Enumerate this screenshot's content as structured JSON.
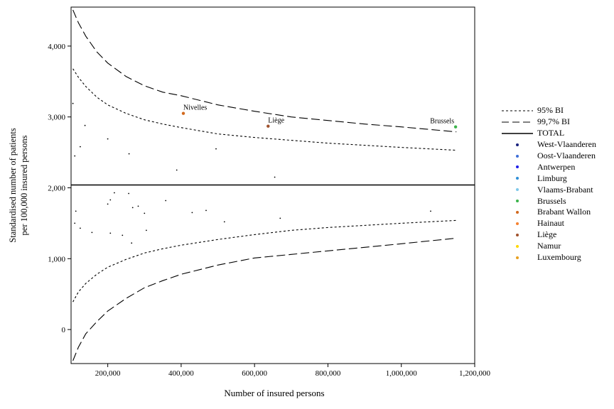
{
  "chart_data": {
    "type": "scatter",
    "title": "",
    "xlabel": "Number of insured persons",
    "ylabel": [
      "Standardised number of patients",
      "per 100,000 insured persons"
    ],
    "xlim": [
      100000,
      1200000
    ],
    "ylim": [
      -480,
      4550
    ],
    "x_ticks": [
      200000,
      400000,
      600000,
      800000,
      1000000,
      1200000
    ],
    "x_tick_labels": [
      "200,000",
      "400,000",
      "600,000",
      "800,000",
      "1,000,000",
      "1,200,000"
    ],
    "y_ticks": [
      0,
      1000,
      2000,
      3000,
      4000
    ],
    "y_tick_labels": [
      "0",
      "1,000",
      "2,000",
      "3,000",
      "4,000"
    ],
    "total_value": 2040,
    "grid": false,
    "legend_position": "right",
    "legend": [
      {
        "label": "95% BI",
        "kind": "line",
        "style": "short-dash"
      },
      {
        "label": "99,7% BI",
        "kind": "line",
        "style": "long-dash"
      },
      {
        "label": "TOTAL",
        "kind": "line",
        "style": "solid"
      },
      {
        "label": "West-Vlaanderen",
        "kind": "dot",
        "color": "#1a237e"
      },
      {
        "label": "Oost-Vlaanderen",
        "kind": "dot",
        "color": "#3f6fd8"
      },
      {
        "label": "Antwerpen",
        "kind": "dot",
        "color": "#1f1fe8"
      },
      {
        "label": "Limburg",
        "kind": "dot",
        "color": "#2f8fd8"
      },
      {
        "label": "Vlaams-Brabant",
        "kind": "dot",
        "color": "#7ec8ea"
      },
      {
        "label": "Brussels",
        "kind": "dot",
        "color": "#3cb44b"
      },
      {
        "label": "Brabant Wallon",
        "kind": "dot",
        "color": "#d2691e"
      },
      {
        "label": "Hainaut",
        "kind": "dot",
        "color": "#f58231"
      },
      {
        "label": "Liège",
        "kind": "dot",
        "color": "#a0522d"
      },
      {
        "label": "Namur",
        "kind": "dot",
        "color": "#ffd700"
      },
      {
        "label": "Luxembourg",
        "kind": "dot",
        "color": "#e8a020"
      }
    ],
    "bands": {
      "ci95": {
        "upper": [
          [
            105000,
            3680
          ],
          [
            120000,
            3560
          ],
          [
            140000,
            3430
          ],
          [
            170000,
            3280
          ],
          [
            200000,
            3170
          ],
          [
            250000,
            3050
          ],
          [
            300000,
            2960
          ],
          [
            350000,
            2900
          ],
          [
            400000,
            2850
          ],
          [
            500000,
            2760
          ],
          [
            600000,
            2710
          ],
          [
            700000,
            2670
          ],
          [
            800000,
            2630
          ],
          [
            900000,
            2600
          ],
          [
            1000000,
            2570
          ],
          [
            1150000,
            2530
          ]
        ],
        "lower": [
          [
            105000,
            390
          ],
          [
            120000,
            530
          ],
          [
            140000,
            650
          ],
          [
            170000,
            780
          ],
          [
            200000,
            880
          ],
          [
            250000,
            990
          ],
          [
            300000,
            1080
          ],
          [
            350000,
            1140
          ],
          [
            400000,
            1190
          ],
          [
            500000,
            1270
          ],
          [
            600000,
            1340
          ],
          [
            700000,
            1400
          ],
          [
            800000,
            1440
          ],
          [
            900000,
            1470
          ],
          [
            1000000,
            1500
          ],
          [
            1150000,
            1540
          ]
        ]
      },
      "ci997": {
        "upper": [
          [
            105000,
            4510
          ],
          [
            120000,
            4330
          ],
          [
            140000,
            4140
          ],
          [
            170000,
            3920
          ],
          [
            200000,
            3760
          ],
          [
            250000,
            3570
          ],
          [
            300000,
            3440
          ],
          [
            350000,
            3350
          ],
          [
            400000,
            3300
          ],
          [
            500000,
            3170
          ],
          [
            600000,
            3080
          ],
          [
            700000,
            3000
          ],
          [
            800000,
            2950
          ],
          [
            900000,
            2900
          ],
          [
            1000000,
            2860
          ],
          [
            1150000,
            2790
          ]
        ],
        "lower": [
          [
            105000,
            -440
          ],
          [
            120000,
            -250
          ],
          [
            140000,
            -60
          ],
          [
            170000,
            110
          ],
          [
            200000,
            260
          ],
          [
            250000,
            440
          ],
          [
            300000,
            590
          ],
          [
            350000,
            690
          ],
          [
            400000,
            780
          ],
          [
            500000,
            910
          ],
          [
            600000,
            1010
          ],
          [
            700000,
            1060
          ],
          [
            800000,
            1110
          ],
          [
            900000,
            1160
          ],
          [
            1000000,
            1210
          ],
          [
            1150000,
            1290
          ]
        ]
      }
    },
    "points": [
      {
        "x": 105000,
        "y": 3190,
        "color": "#000000"
      },
      {
        "x": 110000,
        "y": 2450,
        "color": "#000000"
      },
      {
        "x": 125000,
        "y": 2580,
        "color": "#000000"
      },
      {
        "x": 138000,
        "y": 2880,
        "color": "#000000"
      },
      {
        "x": 200000,
        "y": 2690,
        "color": "#000000"
      },
      {
        "x": 258000,
        "y": 2480,
        "color": "#000000"
      },
      {
        "x": 388000,
        "y": 2250,
        "color": "#000000"
      },
      {
        "x": 495000,
        "y": 2550,
        "color": "#000000"
      },
      {
        "x": 655000,
        "y": 2150,
        "color": "#000000"
      },
      {
        "x": 406000,
        "y": 3050,
        "color": "#d2691e",
        "label": "Nivelles"
      },
      {
        "x": 637000,
        "y": 2870,
        "color": "#a0522d",
        "label": "Liège"
      },
      {
        "x": 1148000,
        "y": 2860,
        "color": "#3cb44b",
        "label": "Brussels"
      },
      {
        "x": 110000,
        "y": 1500,
        "color": "#000000"
      },
      {
        "x": 113000,
        "y": 1670,
        "color": "#000000"
      },
      {
        "x": 125000,
        "y": 1430,
        "color": "#000000"
      },
      {
        "x": 157000,
        "y": 1370,
        "color": "#000000"
      },
      {
        "x": 200000,
        "y": 1770,
        "color": "#000000"
      },
      {
        "x": 207000,
        "y": 1830,
        "color": "#000000"
      },
      {
        "x": 207000,
        "y": 1360,
        "color": "#000000"
      },
      {
        "x": 218000,
        "y": 1930,
        "color": "#000000"
      },
      {
        "x": 240000,
        "y": 1330,
        "color": "#000000"
      },
      {
        "x": 257000,
        "y": 1920,
        "color": "#000000"
      },
      {
        "x": 265000,
        "y": 1220,
        "color": "#000000"
      },
      {
        "x": 268000,
        "y": 1720,
        "color": "#000000"
      },
      {
        "x": 283000,
        "y": 1740,
        "color": "#000000"
      },
      {
        "x": 300000,
        "y": 1640,
        "color": "#000000"
      },
      {
        "x": 305000,
        "y": 1400,
        "color": "#000000"
      },
      {
        "x": 358000,
        "y": 1820,
        "color": "#000000"
      },
      {
        "x": 430000,
        "y": 1650,
        "color": "#000000"
      },
      {
        "x": 468000,
        "y": 1680,
        "color": "#000000"
      },
      {
        "x": 518000,
        "y": 1520,
        "color": "#000000"
      },
      {
        "x": 670000,
        "y": 1570,
        "color": "#000000"
      },
      {
        "x": 1080000,
        "y": 1670,
        "color": "#000000"
      }
    ]
  }
}
